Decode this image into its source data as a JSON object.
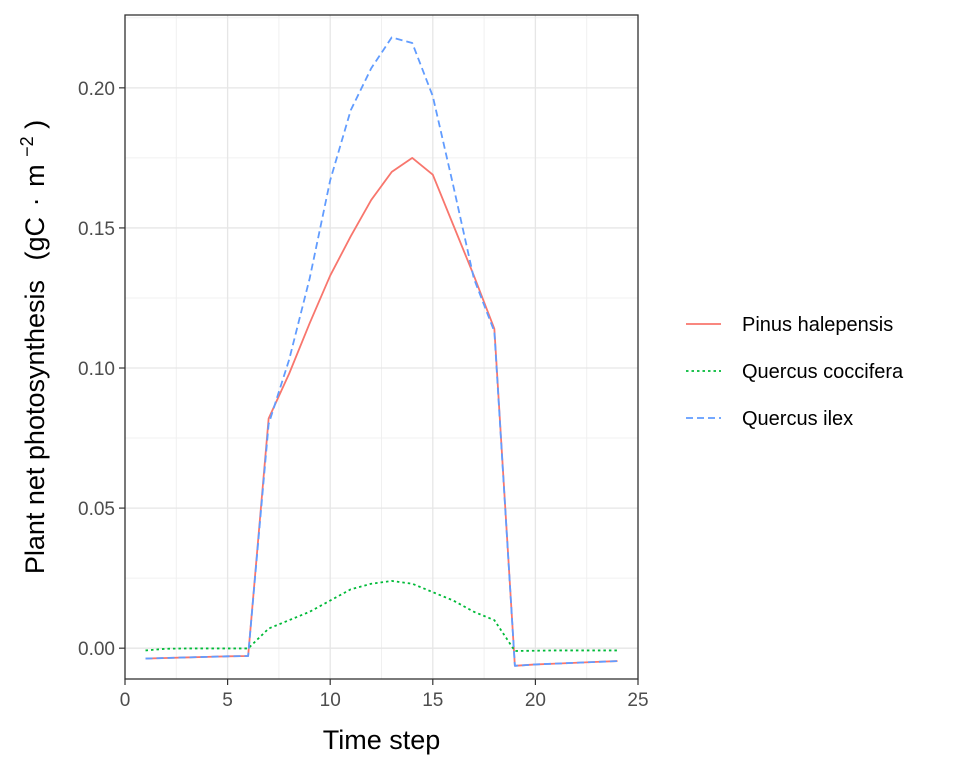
{
  "chart_data": {
    "type": "line",
    "xlabel": "Time step",
    "ylabel": {
      "main": "Plant net photosynthesis",
      "unit_open": "(gC",
      "unit_dot": "·",
      "unit_m": "m",
      "unit_exp": "−2",
      "unit_close": ")"
    },
    "xlim": [
      0,
      25
    ],
    "ylim": [
      -0.011,
      0.226
    ],
    "x_ticks": [
      0,
      5,
      10,
      15,
      20,
      25
    ],
    "y_ticks": [
      0.0,
      0.05,
      0.1,
      0.15,
      0.2
    ],
    "x_tick_labels": [
      "0",
      "5",
      "10",
      "15",
      "20",
      "25"
    ],
    "y_tick_labels": [
      "0.00",
      "0.05",
      "0.10",
      "0.15",
      "0.20"
    ],
    "grid": true,
    "legend_position": "right",
    "x": [
      1,
      2,
      3,
      4,
      5,
      6,
      7,
      8,
      9,
      10,
      11,
      12,
      13,
      14,
      15,
      16,
      17,
      18,
      19,
      20,
      21,
      22,
      23,
      24
    ],
    "series": [
      {
        "name": "Pinus halepensis",
        "color": "#F8766D",
        "dash": "solid",
        "values": [
          -0.0037,
          -0.0035,
          -0.0033,
          -0.0031,
          -0.0029,
          -0.0028,
          0.082,
          0.098,
          0.116,
          0.133,
          0.147,
          0.16,
          0.17,
          0.175,
          0.169,
          0.151,
          0.133,
          0.114,
          -0.0063,
          -0.0058,
          -0.0055,
          -0.0052,
          -0.0049,
          -0.0046
        ]
      },
      {
        "name": "Quercus coccifera",
        "color": "#00BA38",
        "dash": "dotted",
        "values": [
          -0.0008,
          -0.0002,
          -0.0001,
          -0.0001,
          -0.0001,
          -0.0001,
          0.007,
          0.01,
          0.013,
          0.017,
          0.021,
          0.023,
          0.024,
          0.023,
          0.02,
          0.017,
          0.013,
          0.01,
          -0.001,
          -0.0009,
          -0.0008,
          -0.0008,
          -0.0008,
          -0.0008
        ]
      },
      {
        "name": "Quercus ilex",
        "color": "#619CFF",
        "dash": "dashed",
        "values": [
          -0.0037,
          -0.0035,
          -0.0033,
          -0.0031,
          -0.0029,
          -0.0028,
          0.08,
          0.103,
          0.132,
          0.167,
          0.192,
          0.207,
          0.218,
          0.216,
          0.197,
          0.165,
          0.132,
          0.113,
          -0.0063,
          -0.0058,
          -0.0055,
          -0.0052,
          -0.0049,
          -0.0046
        ]
      }
    ]
  }
}
